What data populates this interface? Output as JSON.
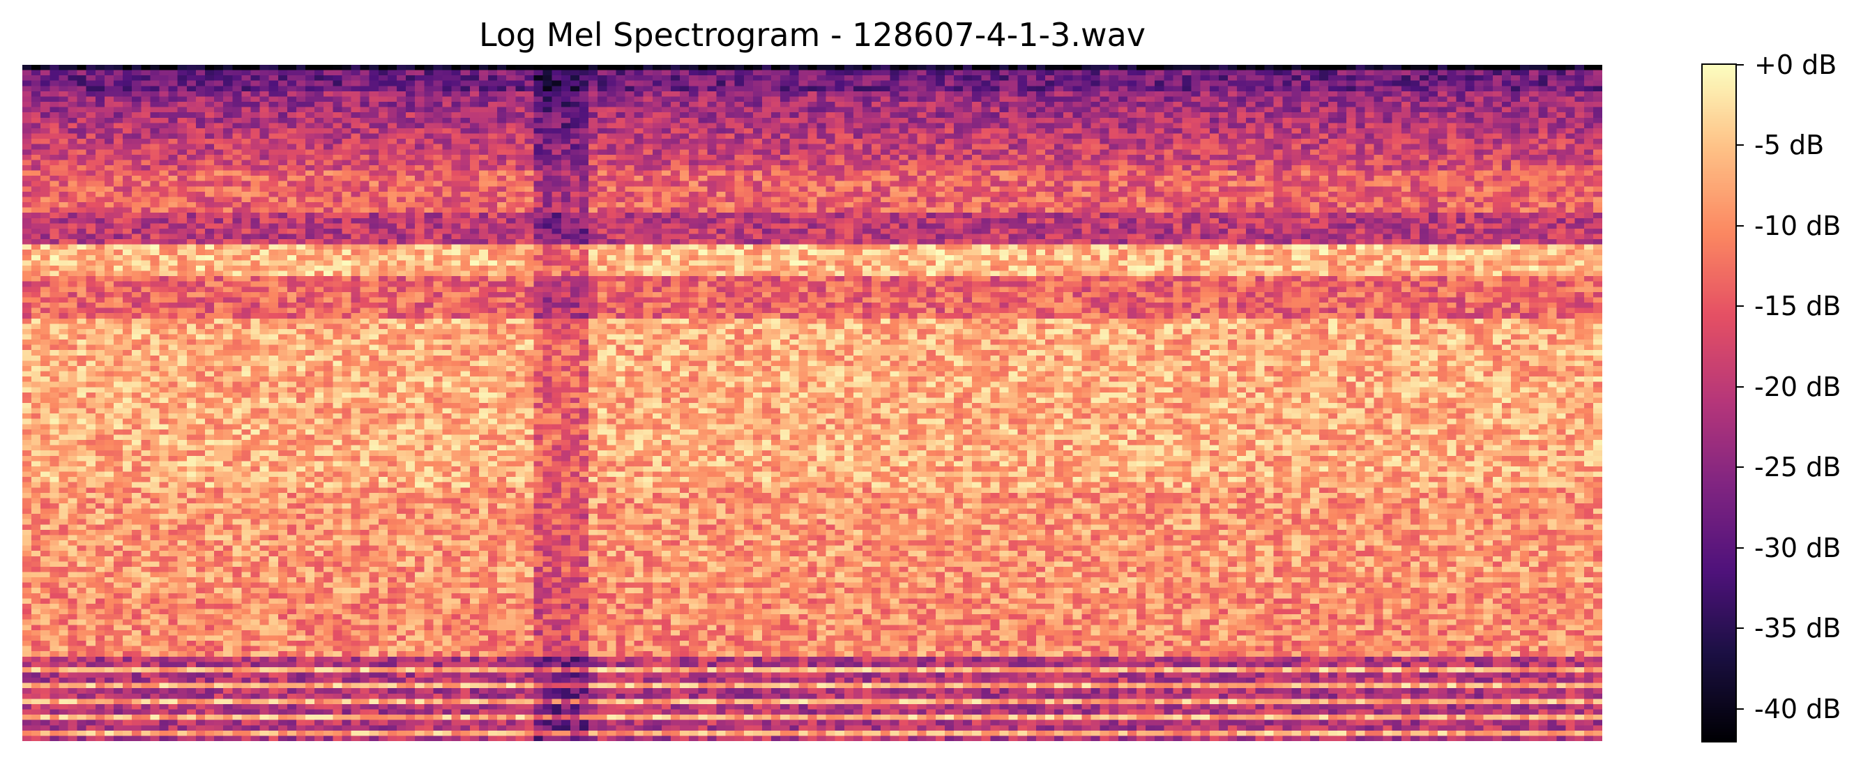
{
  "chart_data": {
    "type": "heatmap",
    "title": "Log Mel Spectrogram - 128607-4-1-3.wav",
    "xlabel": "",
    "ylabel": "",
    "colormap": "magma",
    "color_range_db": [
      -42,
      0
    ],
    "colorbar": {
      "ticks": [
        0,
        -5,
        -10,
        -15,
        -20,
        -25,
        -30,
        -35,
        -40
      ],
      "tick_labels": [
        "+0 dB",
        "-5 dB",
        "-10 dB",
        "-15 dB",
        "-20 dB",
        "-25 dB",
        "-30 dB",
        "-35 dB",
        "-40 dB"
      ]
    },
    "grid": false,
    "axes_visible": false,
    "n_time_frames": 173,
    "n_mel_bands": 128,
    "band_profile_db": {
      "description": "approximate level per band region, top (high mel) to bottom (low mel)",
      "regions": [
        {
          "rows": "0-5",
          "level_db": -30
        },
        {
          "rows": "5-20",
          "level_db": -24
        },
        {
          "rows": "20-45",
          "level_db": -12
        },
        {
          "rows": "45-80",
          "level_db": -6
        },
        {
          "rows": "80-100",
          "level_db": -8
        },
        {
          "rows": "100-115",
          "level_db": -10
        },
        {
          "rows": "115-128",
          "level_db": -14
        }
      ]
    }
  }
}
